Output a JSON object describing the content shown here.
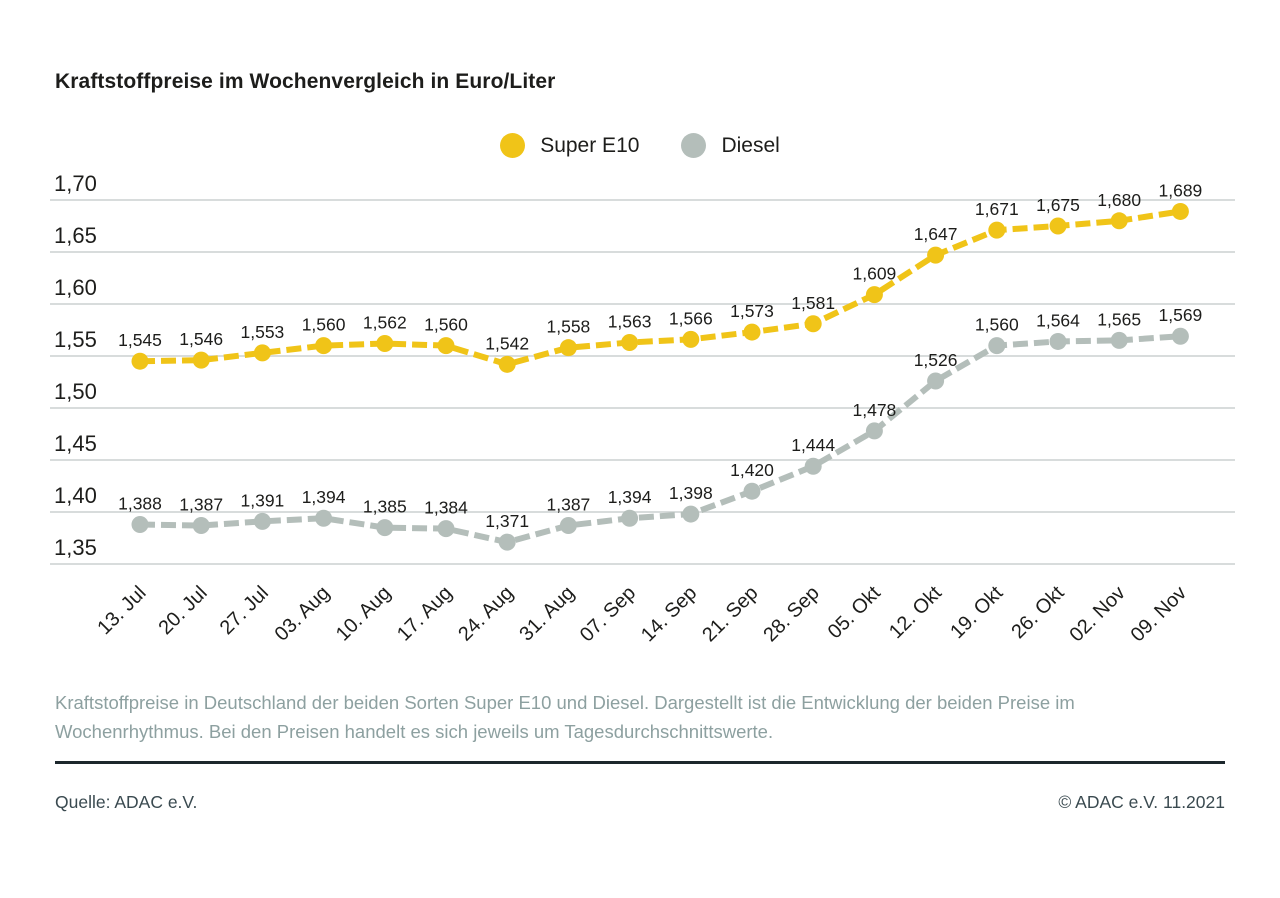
{
  "page": {
    "title": "Kraftstoffpreise im Wochenvergleich in Euro/Liter",
    "description": "Kraftstoffpreise in Deutschland der beiden Sorten Super E10 und Diesel. Dargestellt ist die Entwicklung der beiden Preise im Wochenrhythmus. Bei den Preisen handelt es sich jeweils um Tagesdurchschnittswerte.",
    "source_label": "Quelle: ADAC e.V.",
    "copyright_label": "© ADAC e.V. 11.2021"
  },
  "colors": {
    "super_e10": "#F0C418",
    "diesel": "#B4BEBA",
    "grid": "#CBD1D0",
    "text_dark": "#1D1D1B",
    "text_muted": "#8DA0A0",
    "rule": "#1C272C"
  },
  "chart_data": {
    "type": "line",
    "title": "Kraftstoffpreise im Wochenvergleich in Euro/Liter",
    "unit": "Euro/Liter",
    "categories": [
      "13. Jul",
      "20. Jul",
      "27. Jul",
      "03. Aug",
      "10. Aug",
      "17. Aug",
      "24. Aug",
      "31. Aug",
      "07. Sep",
      "14. Sep",
      "21. Sep",
      "28. Sep",
      "05. Okt",
      "12. Okt",
      "19. Okt",
      "26. Okt",
      "02. Nov",
      "09. Nov"
    ],
    "series": [
      {
        "name": "Super E10",
        "color": "#F0C418",
        "values": [
          1.545,
          1.546,
          1.553,
          1.56,
          1.562,
          1.56,
          1.542,
          1.558,
          1.563,
          1.566,
          1.573,
          1.581,
          1.609,
          1.647,
          1.671,
          1.675,
          1.68,
          1.689
        ]
      },
      {
        "name": "Diesel",
        "color": "#B4BEBA",
        "values": [
          1.388,
          1.387,
          1.391,
          1.394,
          1.385,
          1.384,
          1.371,
          1.387,
          1.394,
          1.398,
          1.42,
          1.444,
          1.478,
          1.526,
          1.56,
          1.564,
          1.565,
          1.569
        ]
      }
    ],
    "ylim": [
      1.35,
      1.7
    ],
    "ytick_step": 0.05,
    "ytick_labels": [
      "1,70",
      "1,65",
      "1,60",
      "1,55",
      "1,50",
      "1,45",
      "1,40",
      "1,35"
    ],
    "grid": true,
    "legend_position": "top-center",
    "decimal_separator": ","
  }
}
